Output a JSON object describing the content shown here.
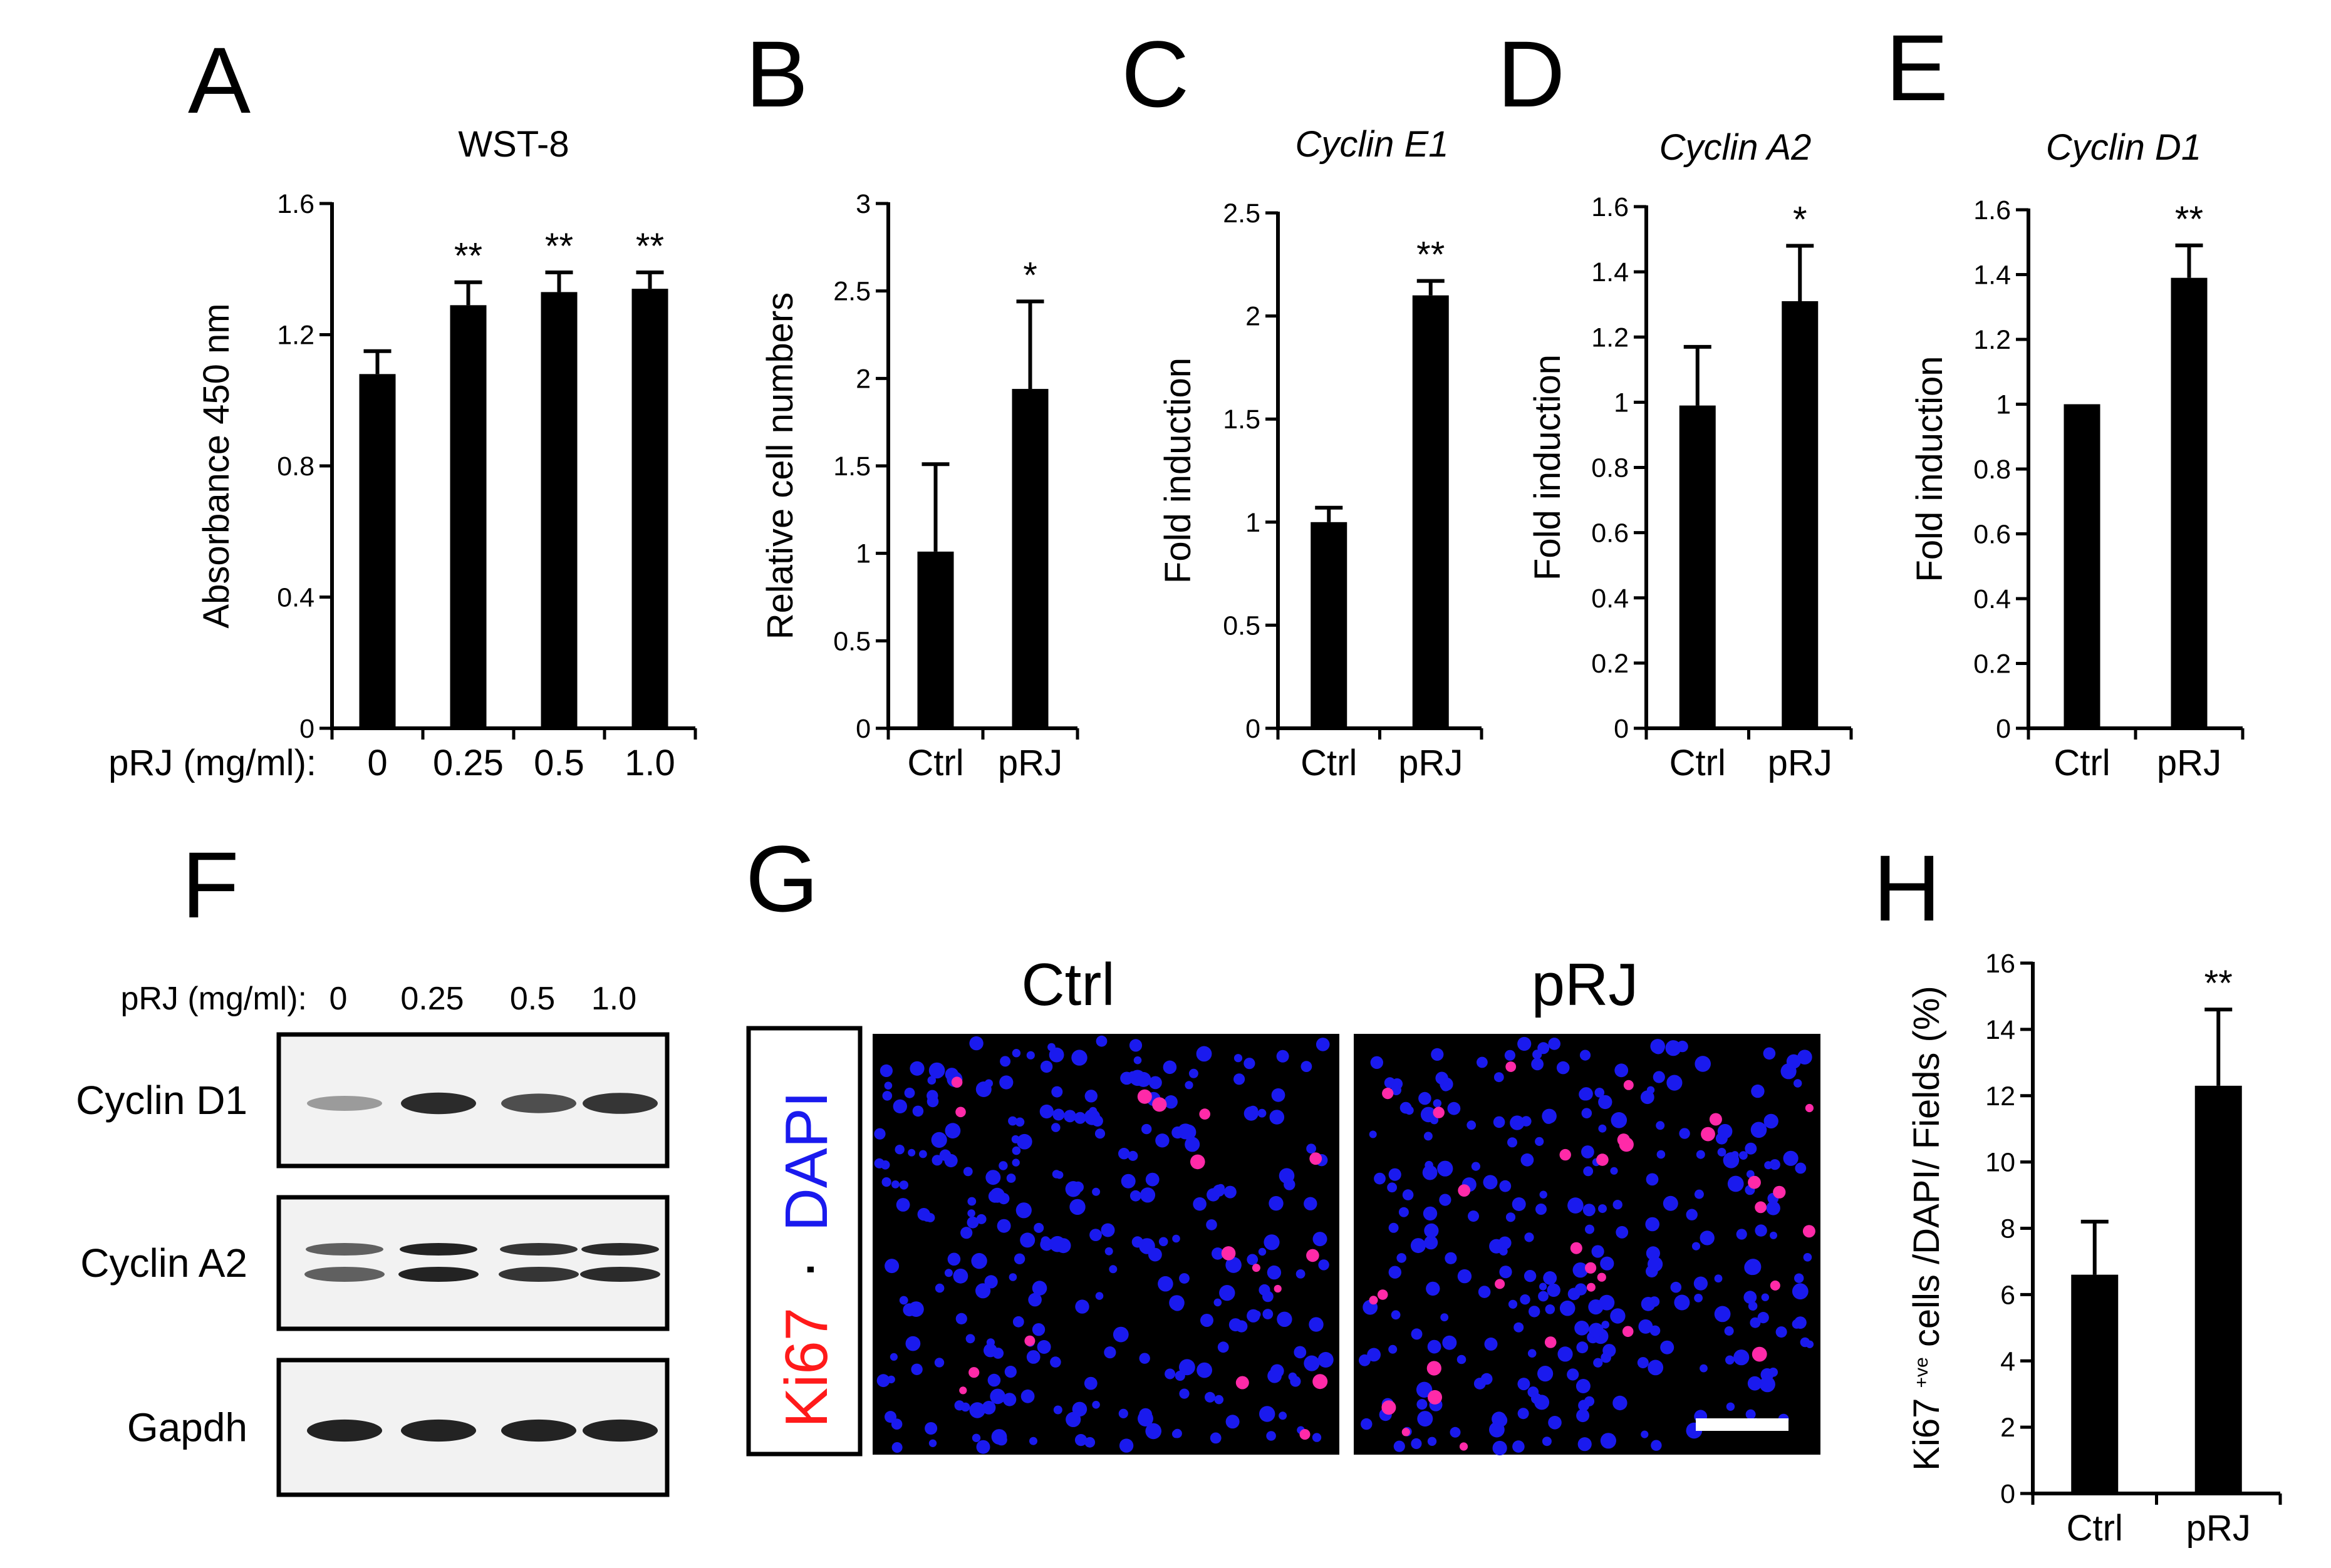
{
  "panels": {
    "A": "A",
    "B": "B",
    "C": "C",
    "D": "D",
    "E": "E",
    "F": "F",
    "G": "G",
    "H": "H"
  },
  "colors": {
    "bar": "#000000",
    "dapi": "#1a1aee",
    "ki67": "#ff1a1a",
    "blot_bg": "#f2f2f2",
    "blot_band": "#1a1a1a"
  },
  "chart_data": [
    {
      "id": "A",
      "type": "bar",
      "title": "WST-8",
      "ylabel": "Absorbance 450 nm",
      "xlabel_prefix": "pRJ (mg/ml):",
      "categories": [
        "0",
        "0.25",
        "0.5",
        "1.0"
      ],
      "values": [
        1.08,
        1.29,
        1.33,
        1.34
      ],
      "errors": [
        0.07,
        0.07,
        0.06,
        0.05
      ],
      "significance": [
        "",
        "**",
        "**",
        "**"
      ],
      "ylim": [
        0,
        1.6
      ],
      "yticks": [
        "0",
        "0.4",
        "0.8",
        "1.2",
        "1.6"
      ]
    },
    {
      "id": "B",
      "type": "bar",
      "title": "",
      "ylabel": "Relative cell numbers",
      "categories": [
        "Ctrl",
        "pRJ"
      ],
      "values": [
        1.01,
        1.94
      ],
      "errors": [
        0.5,
        0.5
      ],
      "significance": [
        "",
        "*"
      ],
      "ylim": [
        0,
        3
      ],
      "yticks": [
        "0",
        "0.5",
        "1",
        "1.5",
        "2",
        "2.5",
        "3"
      ]
    },
    {
      "id": "C",
      "type": "bar",
      "title": "Cyclin E1",
      "ylabel": "Fold induction",
      "categories": [
        "Ctrl",
        "pRJ"
      ],
      "values": [
        1.0,
        2.1
      ],
      "errors": [
        0.07,
        0.07
      ],
      "significance": [
        "",
        "**"
      ],
      "ylim": [
        0,
        2.5
      ],
      "yticks": [
        "0",
        "0.5",
        "1",
        "1.5",
        "2",
        "2.5"
      ]
    },
    {
      "id": "D",
      "type": "bar",
      "title": "Cyclin A2",
      "ylabel": "Fold induction",
      "categories": [
        "Ctrl",
        "pRJ"
      ],
      "values": [
        0.99,
        1.31
      ],
      "errors": [
        0.18,
        0.17
      ],
      "significance": [
        "",
        "*"
      ],
      "ylim": [
        0,
        1.6
      ],
      "yticks": [
        "0",
        "0.2",
        "0.4",
        "0.6",
        "0.8",
        "1",
        "1.2",
        "1.4",
        "1.6"
      ]
    },
    {
      "id": "E",
      "type": "bar",
      "title": "Cyclin D1",
      "ylabel": "Fold induction",
      "categories": [
        "Ctrl",
        "pRJ"
      ],
      "values": [
        1.0,
        1.39
      ],
      "errors": [
        0.0,
        0.1
      ],
      "significance": [
        "",
        "**"
      ],
      "ylim": [
        0,
        1.6
      ],
      "yticks": [
        "0",
        "0.2",
        "0.4",
        "0.6",
        "0.8",
        "1",
        "1.2",
        "1.4",
        "1.6"
      ]
    },
    {
      "id": "H",
      "type": "bar",
      "title": "",
      "ylabel": "Ki67 +ve cells /DAPI/ Fields (%)",
      "ylabel_parts": [
        "Ki67 ",
        "+ve",
        " cells /DAPI/ Fields (%)"
      ],
      "categories": [
        "Ctrl",
        "pRJ"
      ],
      "values": [
        6.6,
        12.3
      ],
      "errors": [
        1.6,
        2.3
      ],
      "significance": [
        "",
        "**"
      ],
      "ylim": [
        0,
        16
      ],
      "yticks": [
        "0",
        "2",
        "4",
        "6",
        "8",
        "10",
        "12",
        "14",
        "16"
      ]
    }
  ],
  "western_blot": {
    "dose_prefix": "pRJ (mg/ml):",
    "doses": [
      "0",
      "0.25",
      "0.5",
      "1.0"
    ],
    "rows": [
      {
        "label": "Cyclin D1",
        "intensities": [
          0.25,
          0.9,
          0.7,
          0.85
        ],
        "double": false
      },
      {
        "label": "Cyclin A2",
        "intensities": [
          0.6,
          0.95,
          0.85,
          0.9
        ],
        "double": true
      },
      {
        "label": "Gapdh",
        "intensities": [
          0.95,
          0.95,
          0.95,
          0.95
        ],
        "double": false
      }
    ]
  },
  "images": {
    "stain_ki67": "Ki67",
    "stain_sep": "·",
    "stain_dapi": "DAPI",
    "ctrl_label": "Ctrl",
    "prj_label": "pRJ",
    "ctrl_ki67_fraction": 0.066,
    "prj_ki67_fraction": 0.123
  }
}
